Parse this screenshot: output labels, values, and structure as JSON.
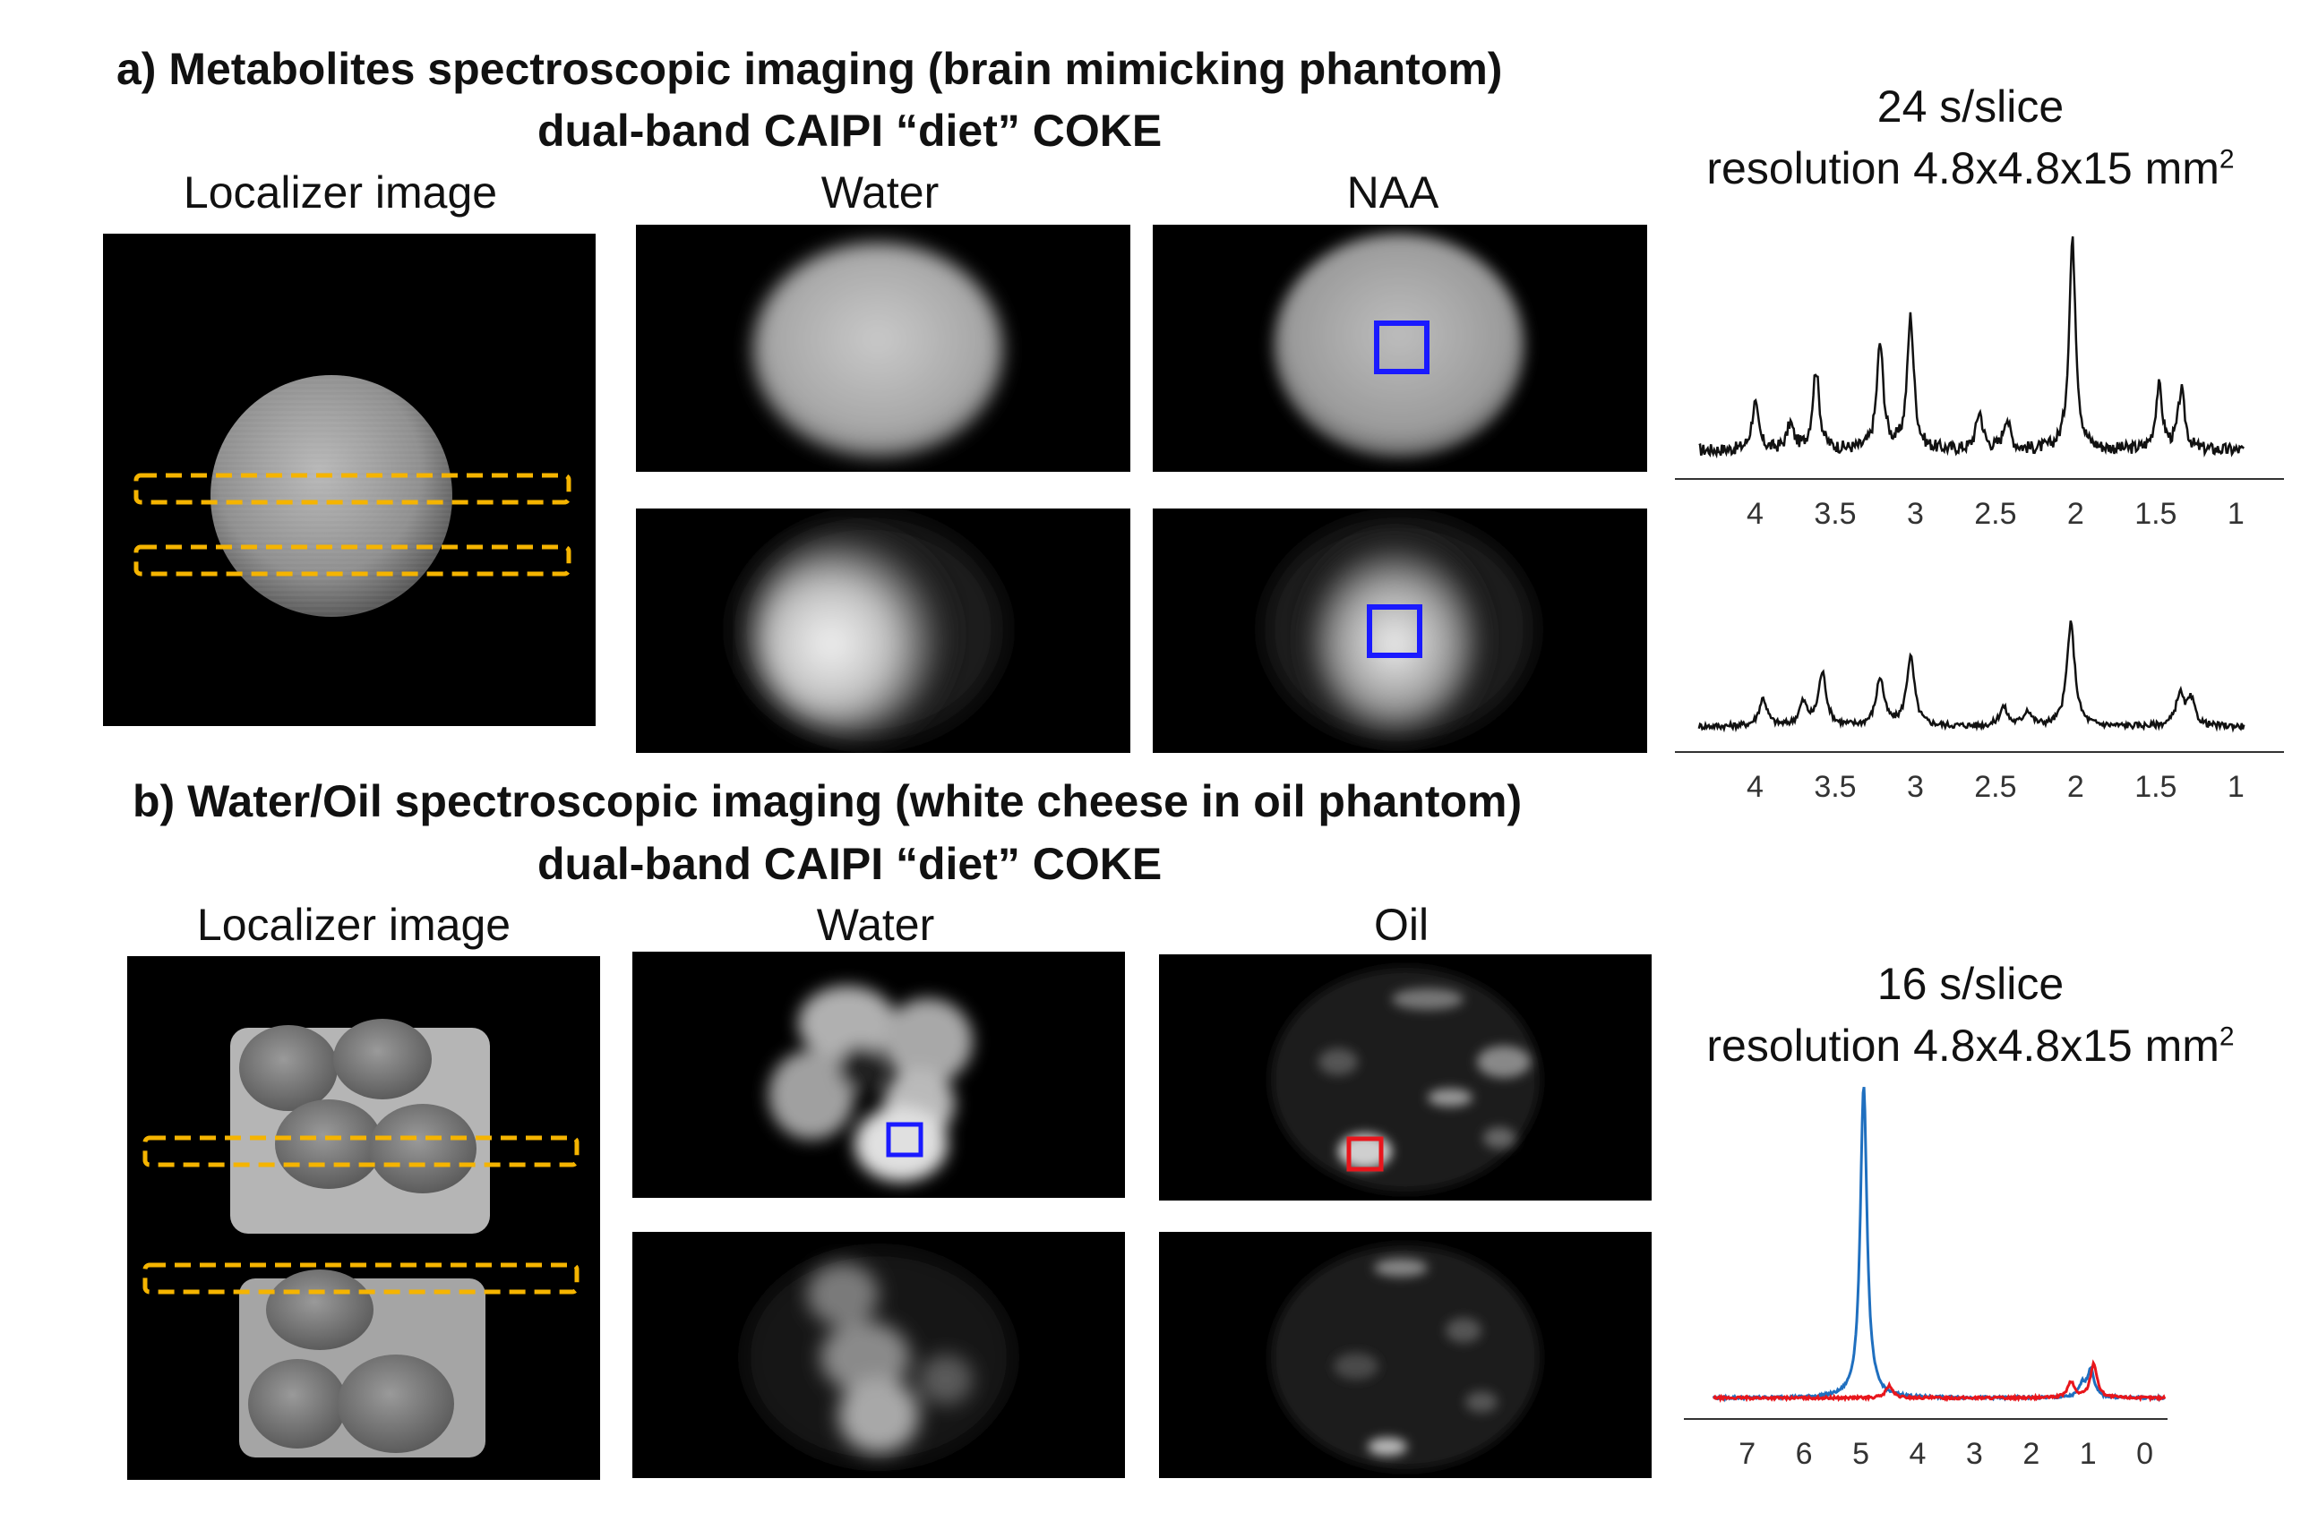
{
  "section_a": {
    "title_line1": "a)     Metabolites spectroscopic imaging (brain mimicking phantom)",
    "title_line2": "dual-band CAIPI “diet” COKE",
    "label_localizer": "Localizer image",
    "label_water": "Water",
    "label_metabolite": "NAA",
    "scan_time": "24 s/slice",
    "resolution": "resolution 4.8x4.8x15 mm",
    "resolution_sup": "2",
    "roi_color": "#1a1aff",
    "slab_color": "#f5b400"
  },
  "section_b": {
    "title_line1": "b) Water/Oil spectroscopic imaging  (white cheese in oil phantom)",
    "title_line2": "dual-band CAIPI “diet” COKE",
    "label_localizer": "Localizer image",
    "label_water": "Water",
    "label_oil": "Oil",
    "scan_time": "16 s/slice",
    "resolution": "resolution 4.8x4.8x15 mm",
    "resolution_sup": "2",
    "roi_water_color": "#1a1aff",
    "roi_oil_color": "#e8161c"
  },
  "chart_data": [
    {
      "type": "line",
      "axis": "chemical shift (ppm), reversed",
      "xlim": [
        4.5,
        0.7
      ],
      "ticks": [
        4,
        3.5,
        3,
        2.5,
        2,
        1.5,
        1
      ],
      "tick_labels": [
        "4",
        "3.5",
        "3",
        "2.5",
        "2",
        "1.5",
        "1"
      ],
      "series": [
        {
          "color": "#111111",
          "peaks": [
            [
              4.0,
              0.22
            ],
            [
              3.78,
              0.12
            ],
            [
              3.62,
              0.38
            ],
            [
              3.22,
              0.5
            ],
            [
              3.03,
              0.63
            ],
            [
              2.6,
              0.18
            ],
            [
              2.43,
              0.15
            ],
            [
              2.02,
              1.0
            ],
            [
              1.48,
              0.3
            ],
            [
              1.34,
              0.28
            ]
          ],
          "baseline": 0.05
        }
      ]
    },
    {
      "type": "line",
      "axis": "chemical shift (ppm), reversed",
      "xlim": [
        4.5,
        0.7
      ],
      "ticks": [
        4,
        3.5,
        3,
        2.5,
        2,
        1.5,
        1
      ],
      "tick_labels": [
        "4",
        "3.5",
        "3",
        "2.5",
        "2",
        "1.5",
        "1"
      ],
      "series": [
        {
          "color": "#111111",
          "peaks": [
            [
              3.95,
              0.22
            ],
            [
              3.7,
              0.18
            ],
            [
              3.58,
              0.42
            ],
            [
              3.22,
              0.38
            ],
            [
              3.03,
              0.55
            ],
            [
              2.45,
              0.15
            ],
            [
              2.3,
              0.12
            ],
            [
              2.03,
              0.82
            ],
            [
              1.35,
              0.25
            ],
            [
              1.28,
              0.2
            ]
          ],
          "baseline": 0.06
        }
      ]
    },
    {
      "type": "line",
      "axis": "chemical shift (ppm), reversed",
      "xlim": [
        7.8,
        -0.4
      ],
      "ticks": [
        7,
        6,
        5,
        4,
        3,
        2,
        1,
        0
      ],
      "tick_labels": [
        "7",
        "6",
        "5",
        "4",
        "3",
        "2",
        "1",
        "0"
      ],
      "series": [
        {
          "name": "",
          "color": "#1f6fbf",
          "peaks": [
            [
              4.95,
              1.0
            ],
            [
              0.95,
              0.09
            ],
            [
              1.1,
              0.04
            ]
          ],
          "baseline": 0.01
        },
        {
          "name": "",
          "color": "#e8161c",
          "peaks": [
            [
              4.5,
              0.04
            ],
            [
              0.9,
              0.11
            ],
            [
              1.3,
              0.05
            ]
          ],
          "baseline": 0.01
        }
      ]
    }
  ]
}
